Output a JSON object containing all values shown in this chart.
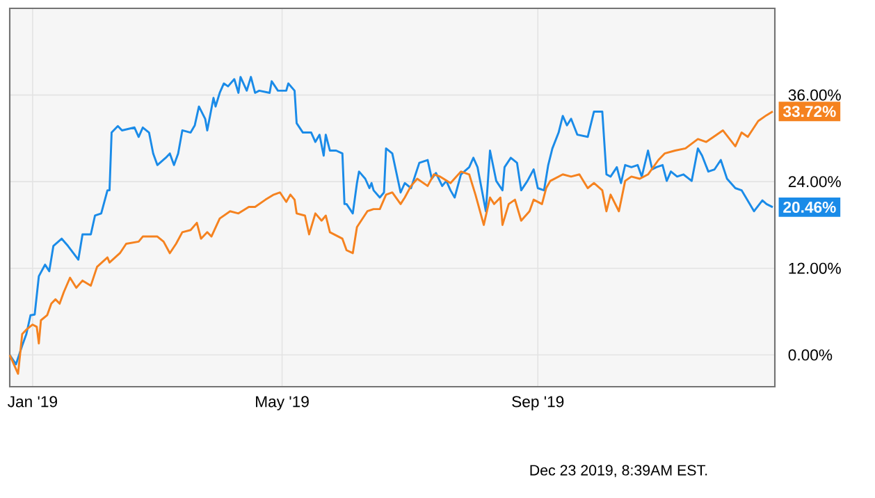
{
  "chart_data": {
    "type": "line",
    "xlim": [
      "2018-12-21",
      "2019-12-24"
    ],
    "xticks": [
      {
        "value": "2019-01-01",
        "label": "Jan '19"
      },
      {
        "value": "2019-05-01",
        "label": "May '19"
      },
      {
        "value": "2019-09-01",
        "label": "Sep '19"
      }
    ],
    "ylim": [
      -4.4,
      48
    ],
    "yticks": [
      {
        "value": 0,
        "label": "0.00%"
      },
      {
        "value": 12,
        "label": "12.00%"
      },
      {
        "value": 24,
        "label": "24.00%"
      },
      {
        "value": 36,
        "label": "36.00%"
      }
    ],
    "grid": true,
    "marker": "none",
    "line_style": "solid",
    "series": [
      {
        "color": "#1a8be8",
        "x": [
          "2018-12-21",
          "2018-12-24",
          "2018-12-27",
          "2018-12-29",
          "2018-12-31",
          "2019-01-02",
          "2019-01-04",
          "2019-01-07",
          "2019-01-09",
          "2019-01-11",
          "2019-01-15",
          "2019-01-18",
          "2019-01-23",
          "2019-01-25",
          "2019-01-29",
          "2019-01-31",
          "2019-02-03",
          "2019-02-06",
          "2019-02-07",
          "2019-02-08",
          "2019-02-11",
          "2019-02-13",
          "2019-02-19",
          "2019-02-21",
          "2019-02-23",
          "2019-02-26",
          "2019-02-28",
          "2019-03-02",
          "2019-03-06",
          "2019-03-08",
          "2019-03-10",
          "2019-03-12",
          "2019-03-14",
          "2019-03-18",
          "2019-03-20",
          "2019-03-22",
          "2019-03-25",
          "2019-03-26",
          "2019-03-29",
          "2019-03-30",
          "2019-04-01",
          "2019-04-03",
          "2019-04-05",
          "2019-04-08",
          "2019-04-10",
          "2019-04-11",
          "2019-04-14",
          "2019-04-16",
          "2019-04-18",
          "2019-04-20",
          "2019-04-25",
          "2019-04-26",
          "2019-04-29",
          "2019-05-03",
          "2019-05-04",
          "2019-05-07",
          "2019-05-08",
          "2019-05-11",
          "2019-05-15",
          "2019-05-17",
          "2019-05-19",
          "2019-05-21",
          "2019-05-22",
          "2019-05-24",
          "2019-05-27",
          "2019-05-30",
          "2019-05-31",
          "2019-06-01",
          "2019-06-04",
          "2019-06-06",
          "2019-06-07",
          "2019-06-10",
          "2019-06-12",
          "2019-06-13",
          "2019-06-14",
          "2019-06-17",
          "2019-06-19",
          "2019-06-20",
          "2019-06-23",
          "2019-06-27",
          "2019-06-29",
          "2019-07-02",
          "2019-07-06",
          "2019-07-10",
          "2019-07-12",
          "2019-07-14",
          "2019-07-17",
          "2019-07-19",
          "2019-07-21",
          "2019-07-23",
          "2019-07-26",
          "2019-07-30",
          "2019-08-01",
          "2019-08-03",
          "2019-08-07",
          "2019-08-09",
          "2019-08-12",
          "2019-08-15",
          "2019-08-16",
          "2019-08-19",
          "2019-08-22",
          "2019-08-24",
          "2019-08-27",
          "2019-08-30",
          "2019-09-01",
          "2019-09-04",
          "2019-09-06",
          "2019-09-08",
          "2019-09-11",
          "2019-09-13",
          "2019-09-15",
          "2019-09-17",
          "2019-09-20",
          "2019-09-25",
          "2019-09-28",
          "2019-10-02",
          "2019-10-04",
          "2019-10-06",
          "2019-10-09",
          "2019-10-11",
          "2019-10-13",
          "2019-10-16",
          "2019-10-19",
          "2019-10-21",
          "2019-10-24",
          "2019-10-26",
          "2019-10-28",
          "2019-10-31",
          "2019-11-02",
          "2019-11-04",
          "2019-11-07",
          "2019-11-10",
          "2019-11-14",
          "2019-11-17",
          "2019-11-19",
          "2019-11-22",
          "2019-11-25",
          "2019-11-28",
          "2019-12-01",
          "2019-12-05",
          "2019-12-08",
          "2019-12-14",
          "2019-12-18",
          "2019-12-20",
          "2019-12-23"
        ],
        "values": [
          0.0,
          -1.3,
          1.3,
          2.9,
          5.5,
          5.6,
          10.9,
          12.5,
          11.6,
          15.1,
          16.1,
          15.1,
          13.2,
          16.7,
          16.7,
          19.3,
          19.6,
          22.8,
          22.8,
          30.8,
          31.7,
          31.1,
          31.5,
          30.2,
          31.5,
          30.8,
          27.9,
          26.3,
          27.3,
          27.9,
          26.3,
          27.9,
          31.1,
          30.8,
          31.8,
          34.4,
          32.7,
          31.1,
          35.6,
          34.4,
          36.3,
          37.6,
          37.2,
          38.2,
          36.3,
          38.5,
          36.6,
          38.5,
          36.3,
          36.6,
          36.3,
          37.9,
          36.6,
          36.6,
          37.6,
          36.6,
          32.1,
          30.8,
          30.8,
          29.5,
          30.5,
          27.6,
          30.5,
          28.3,
          28.3,
          27.9,
          20.9,
          20.9,
          19.6,
          23.8,
          25.4,
          24.4,
          23.1,
          23.8,
          22.8,
          21.8,
          22.5,
          28.6,
          27.9,
          22.5,
          23.8,
          23.1,
          26.6,
          27.0,
          24.4,
          25.2,
          23.4,
          24.1,
          22.8,
          21.8,
          25.0,
          26.0,
          27.3,
          26.0,
          19.9,
          28.3,
          24.1,
          22.8,
          26.0,
          27.3,
          26.6,
          22.8,
          24.1,
          25.7,
          23.1,
          22.8,
          26.3,
          28.6,
          30.8,
          33.1,
          31.8,
          32.7,
          30.5,
          30.2,
          33.7,
          33.7,
          25.0,
          24.7,
          26.0,
          23.8,
          26.3,
          26.0,
          26.3,
          24.7,
          28.3,
          25.7,
          26.0,
          26.3,
          24.1,
          25.4,
          24.7,
          25.0,
          24.1,
          28.6,
          27.6,
          25.4,
          25.7,
          27.0,
          24.4,
          23.1,
          22.8,
          19.9,
          21.4,
          20.9,
          20.46
        ]
      },
      {
        "color": "#f5821f",
        "x": [
          "2018-12-21",
          "2018-12-25",
          "2018-12-27",
          "2018-12-29",
          "2019-01-01",
          "2019-01-03",
          "2019-01-04",
          "2019-01-05",
          "2019-01-08",
          "2019-01-10",
          "2019-01-12",
          "2019-01-14",
          "2019-01-16",
          "2019-01-19",
          "2019-01-22",
          "2019-01-25",
          "2019-01-29",
          "2019-02-01",
          "2019-02-06",
          "2019-02-07",
          "2019-02-12",
          "2019-02-15",
          "2019-02-21",
          "2019-02-23",
          "2019-03-02",
          "2019-03-05",
          "2019-03-08",
          "2019-03-11",
          "2019-03-14",
          "2019-03-18",
          "2019-03-21",
          "2019-03-23",
          "2019-03-26",
          "2019-03-28",
          "2019-04-01",
          "2019-04-06",
          "2019-04-10",
          "2019-04-15",
          "2019-04-18",
          "2019-04-23",
          "2019-04-27",
          "2019-04-30",
          "2019-05-03",
          "2019-05-05",
          "2019-05-07",
          "2019-05-08",
          "2019-05-12",
          "2019-05-14",
          "2019-05-17",
          "2019-05-20",
          "2019-05-22",
          "2019-05-24",
          "2019-05-30",
          "2019-06-01",
          "2019-06-04",
          "2019-06-06",
          "2019-06-11",
          "2019-06-14",
          "2019-06-17",
          "2019-06-20",
          "2019-06-23",
          "2019-06-27",
          "2019-06-29",
          "2019-07-02",
          "2019-07-05",
          "2019-07-10",
          "2019-07-13",
          "2019-07-16",
          "2019-07-21",
          "2019-07-26",
          "2019-07-30",
          "2019-08-02",
          "2019-08-06",
          "2019-08-09",
          "2019-08-11",
          "2019-08-14",
          "2019-08-15",
          "2019-08-18",
          "2019-08-21",
          "2019-08-24",
          "2019-08-28",
          "2019-08-30",
          "2019-09-03",
          "2019-09-05",
          "2019-09-07",
          "2019-09-13",
          "2019-09-17",
          "2019-09-21",
          "2019-09-25",
          "2019-09-28",
          "2019-10-02",
          "2019-10-04",
          "2019-10-06",
          "2019-10-10",
          "2019-10-13",
          "2019-10-16",
          "2019-10-20",
          "2019-10-24",
          "2019-10-29",
          "2019-11-01",
          "2019-11-06",
          "2019-11-11",
          "2019-11-17",
          "2019-11-21",
          "2019-11-26",
          "2019-11-29",
          "2019-12-05",
          "2019-12-08",
          "2019-12-11",
          "2019-12-16",
          "2019-12-20",
          "2019-12-23"
        ],
        "values": [
          0.0,
          -2.6,
          2.9,
          3.5,
          4.2,
          3.9,
          1.6,
          4.8,
          5.5,
          7.1,
          7.7,
          7.1,
          8.7,
          10.7,
          9.3,
          10.3,
          9.6,
          12.2,
          13.5,
          12.8,
          14.1,
          15.4,
          15.7,
          16.4,
          16.4,
          15.7,
          14.1,
          15.4,
          17.0,
          17.3,
          18.3,
          16.1,
          17.0,
          16.4,
          18.9,
          19.9,
          19.6,
          20.5,
          20.5,
          21.5,
          22.2,
          22.5,
          21.2,
          22.2,
          21.5,
          19.6,
          19.3,
          16.7,
          19.6,
          18.6,
          19.3,
          17.0,
          16.1,
          14.5,
          14.1,
          17.7,
          19.9,
          20.2,
          20.2,
          22.2,
          22.5,
          20.9,
          21.8,
          23.4,
          24.4,
          23.4,
          25.0,
          24.7,
          23.8,
          25.4,
          25.0,
          22.2,
          18.0,
          21.8,
          20.9,
          21.8,
          18.0,
          20.9,
          21.5,
          18.6,
          19.9,
          21.5,
          20.9,
          23.1,
          24.1,
          25.0,
          24.7,
          25.0,
          23.1,
          23.8,
          22.8,
          19.9,
          22.2,
          19.9,
          24.1,
          24.7,
          24.4,
          25.0,
          27.0,
          27.9,
          28.3,
          28.6,
          29.9,
          29.5,
          30.5,
          31.1,
          28.9,
          30.8,
          30.2,
          32.4,
          33.2,
          33.72
        ]
      }
    ],
    "annotations": [
      {
        "text": "20.46%",
        "x": "2019-12-23",
        "y": 20.46
      },
      {
        "text": "33.72%",
        "x": "2019-12-23",
        "y": 33.72
      },
      "Dec 23 2019, 8:39AM EST."
    ]
  }
}
